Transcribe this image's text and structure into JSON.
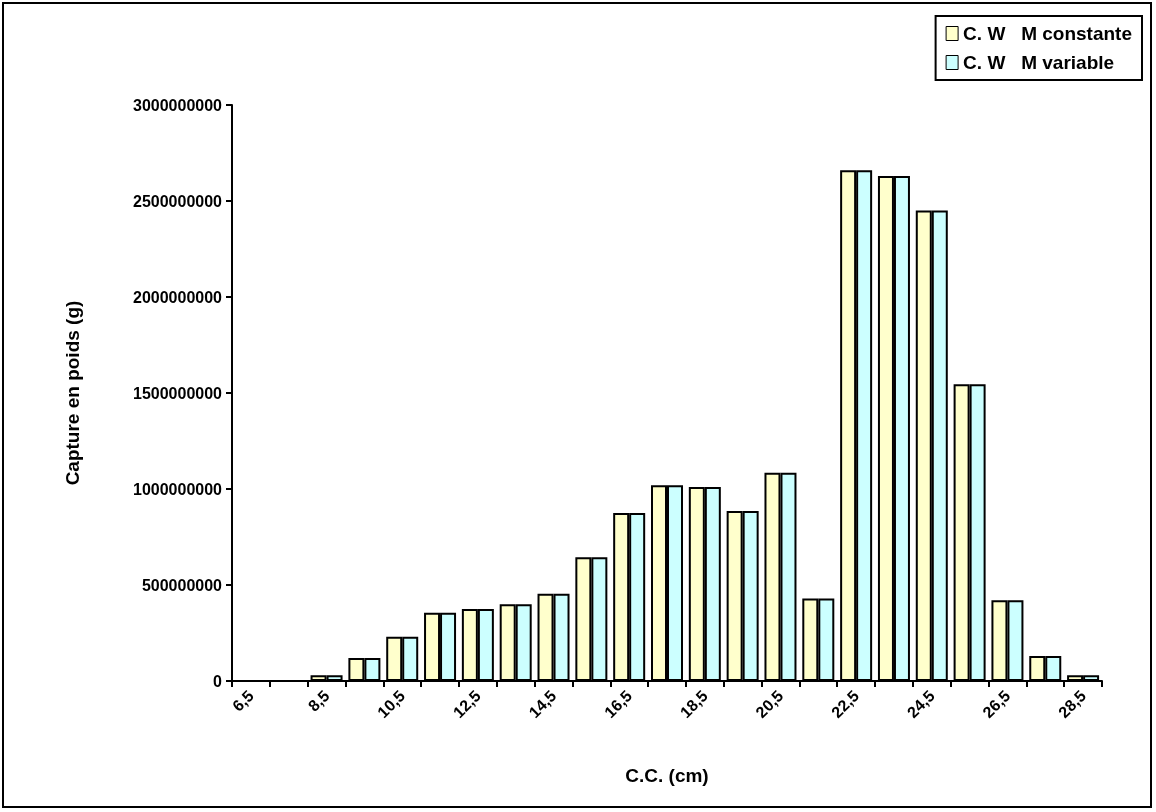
{
  "chart_data": {
    "type": "bar",
    "xlabel": "C.C. (cm)",
    "ylabel": "Capture en poids (g)",
    "categories": [
      "6,5",
      null,
      "8,5",
      null,
      "10,5",
      null,
      "12,5",
      null,
      "14,5",
      null,
      "16,5",
      null,
      "18,5",
      null,
      "20,5",
      null,
      "22,5",
      null,
      "24,5",
      null,
      "26,5",
      null,
      "28,5"
    ],
    "series": [
      {
        "name": "C. W   M constante",
        "color": "#ffffcc",
        "values": [
          null,
          null,
          30000000,
          120000000,
          230000000,
          355000000,
          375000000,
          400000000,
          455000000,
          645000000,
          875000000,
          1020000000,
          1010000000,
          885000000,
          1085000000,
          430000000,
          2660000000,
          2630000000,
          2450000000,
          1545000000,
          420000000,
          130000000,
          30000000
        ]
      },
      {
        "name": "C. W   M variable",
        "color": "#ccffff",
        "values": [
          null,
          null,
          30000000,
          120000000,
          230000000,
          355000000,
          375000000,
          400000000,
          455000000,
          645000000,
          875000000,
          1020000000,
          1010000000,
          885000000,
          1085000000,
          430000000,
          2660000000,
          2630000000,
          2450000000,
          1545000000,
          420000000,
          130000000,
          30000000
        ]
      }
    ],
    "ylim": [
      0,
      3000000000
    ],
    "yticks": [
      0,
      500000000,
      1000000000,
      1500000000,
      2000000000,
      2500000000,
      3000000000
    ],
    "grid": false,
    "legend": "top right"
  }
}
